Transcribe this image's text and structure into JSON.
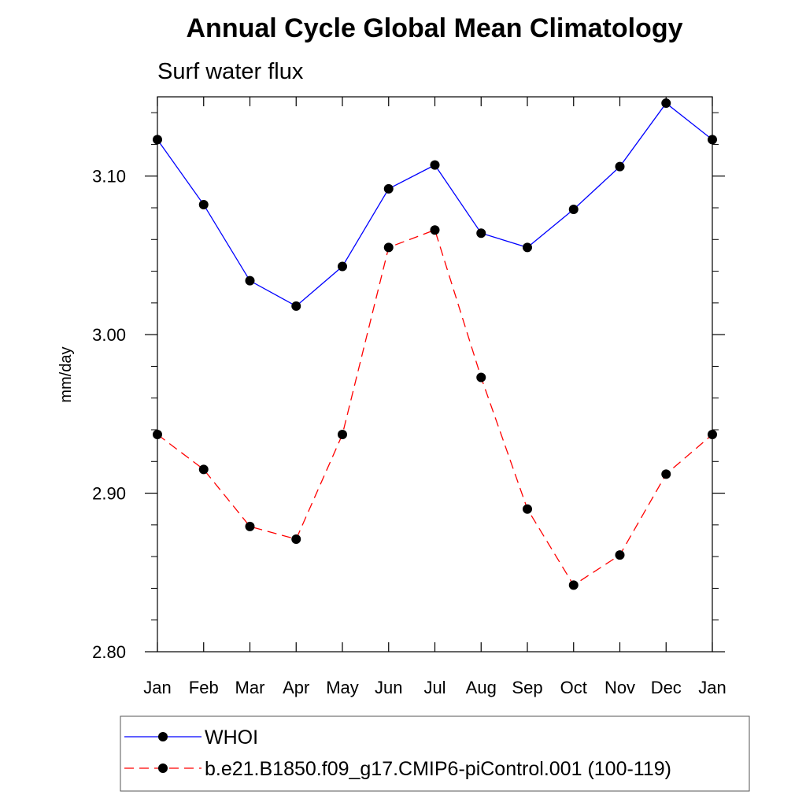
{
  "chart_data": {
    "type": "line",
    "title": "Annual Cycle Global Mean Climatology",
    "subtitle": "Surf water flux",
    "ylabel": "mm/day",
    "xlabel": "",
    "categories": [
      "Jan",
      "Feb",
      "Mar",
      "Apr",
      "May",
      "Jun",
      "Jul",
      "Aug",
      "Sep",
      "Oct",
      "Nov",
      "Dec",
      "Jan"
    ],
    "ylim": [
      2.8,
      3.15
    ],
    "yticks": [
      2.8,
      2.9,
      3.0,
      3.1
    ],
    "ytick_labels": [
      "2.80",
      "2.90",
      "3.00",
      "3.10"
    ],
    "yminor_step": 0.02,
    "grid": false,
    "legend_position": "bottom",
    "series": [
      {
        "name": "WHOI",
        "color": "#0000ff",
        "dash": "solid",
        "marker": "filled-circle",
        "values": [
          3.123,
          3.082,
          3.034,
          3.018,
          3.043,
          3.092,
          3.107,
          3.064,
          3.055,
          3.079,
          3.106,
          3.146,
          3.123
        ]
      },
      {
        "name": "b.e21.B1850.f09_g17.CMIP6-piControl.001 (100-119)",
        "color": "#ff0000",
        "dash": "dashed",
        "marker": "filled-circle",
        "values": [
          2.937,
          2.915,
          2.879,
          2.871,
          2.937,
          3.055,
          3.066,
          2.973,
          2.89,
          2.842,
          2.861,
          2.912,
          2.937
        ]
      }
    ]
  }
}
